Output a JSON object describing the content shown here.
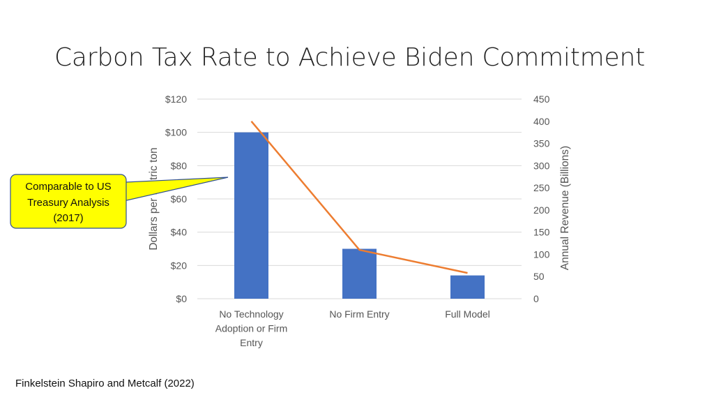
{
  "slide": {
    "title": "Carbon Tax Rate to Achieve Biden Commitment",
    "citation": "Finkelstein Shapiro and Metcalf (2022)"
  },
  "callout": {
    "lines": [
      "Comparable to US",
      "Treasury Analysis",
      "(2017)"
    ],
    "fill_color": "#ffff00"
  },
  "chart_data": {
    "type": "bar",
    "categories": [
      [
        "No Technology",
        "Adoption or Firm",
        "Entry"
      ],
      [
        "No Firm Entry"
      ],
      [
        "Full Model"
      ]
    ],
    "series": [
      {
        "axis": "left",
        "type": "bar",
        "values": [
          100,
          30,
          14
        ],
        "color": "#4472c4"
      },
      {
        "axis": "right",
        "type": "line",
        "values": [
          400,
          110,
          58
        ],
        "color": "#ed7d31"
      }
    ],
    "y_left": {
      "label": "Dollars per metric ton",
      "range": [
        0,
        120
      ],
      "ticks": [
        "$0",
        "$20",
        "$40",
        "$60",
        "$80",
        "$100",
        "$120"
      ]
    },
    "y_right": {
      "label": "Annual Revenue (Billions)",
      "range": [
        0,
        450
      ],
      "ticks": [
        "0",
        "50",
        "100",
        "150",
        "200",
        "250",
        "300",
        "350",
        "400",
        "450"
      ]
    },
    "grid": true,
    "gridline_color": "#d9d9d9"
  }
}
